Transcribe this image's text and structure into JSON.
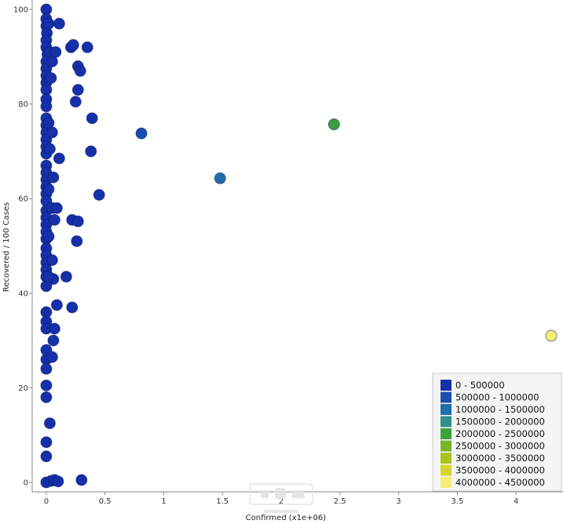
{
  "chart_data": {
    "type": "scatter",
    "title": "",
    "xlabel": "Confirmed (x1e+06)",
    "ylabel": "Recovered / 100 Cases",
    "xlim": [
      -0.12,
      4.4
    ],
    "ylim": [
      -2,
      102
    ],
    "xticks": [
      0,
      0.5,
      1,
      1.5,
      2,
      2.5,
      3,
      3.5,
      4
    ],
    "xtick_labels": [
      "0",
      "0.5",
      "1",
      "1.5",
      "2",
      "2.5",
      "3",
      "3.5",
      "4"
    ],
    "yticks": [
      0,
      20,
      40,
      60,
      80,
      100
    ],
    "ytick_labels": [
      "0",
      "20",
      "40",
      "60",
      "80",
      "100"
    ],
    "grid": false,
    "legend_position": "bottom-right",
    "color_scale": {
      "bins": [
        {
          "label": "0 - 500000",
          "color": "#1530a8"
        },
        {
          "label": "500000 - 1000000",
          "color": "#1a4fb0"
        },
        {
          "label": "1000000 - 1500000",
          "color": "#1f6fa8"
        },
        {
          "label": "1500000 - 2000000",
          "color": "#2f8f8a"
        },
        {
          "label": "2000000 - 2500000",
          "color": "#3ea03a"
        },
        {
          "label": "2500000 - 3000000",
          "color": "#7ab52a"
        },
        {
          "label": "3000000 - 3500000",
          "color": "#a9c51d"
        },
        {
          "label": "3500000 - 4000000",
          "color": "#d6d52d"
        },
        {
          "label": "4000000 - 4500000",
          "color": "#f6ee72"
        }
      ]
    },
    "points": [
      {
        "x": 0.0,
        "y": 100
      },
      {
        "x": 0.0,
        "y": 98
      },
      {
        "x": 0.0,
        "y": 96.5
      },
      {
        "x": 0.005,
        "y": 95
      },
      {
        "x": 0.0,
        "y": 93.5
      },
      {
        "x": 0.0,
        "y": 92
      },
      {
        "x": 0.01,
        "y": 90.5
      },
      {
        "x": 0.0,
        "y": 89
      },
      {
        "x": 0.0,
        "y": 87.5
      },
      {
        "x": 0.0,
        "y": 86
      },
      {
        "x": 0.0,
        "y": 84.5
      },
      {
        "x": 0.0,
        "y": 83
      },
      {
        "x": 0.0,
        "y": 81
      },
      {
        "x": 0.0,
        "y": 79.5
      },
      {
        "x": 0.0,
        "y": 77
      },
      {
        "x": 0.0,
        "y": 75.5
      },
      {
        "x": 0.0,
        "y": 74
      },
      {
        "x": 0.0,
        "y": 72.5
      },
      {
        "x": 0.0,
        "y": 71
      },
      {
        "x": 0.0,
        "y": 69.5
      },
      {
        "x": 0.0,
        "y": 67
      },
      {
        "x": 0.0,
        "y": 65.5
      },
      {
        "x": 0.0,
        "y": 64
      },
      {
        "x": 0.0,
        "y": 62.5
      },
      {
        "x": 0.0,
        "y": 61
      },
      {
        "x": 0.0,
        "y": 59.5
      },
      {
        "x": 0.0,
        "y": 57.5
      },
      {
        "x": 0.0,
        "y": 56
      },
      {
        "x": 0.0,
        "y": 54.5
      },
      {
        "x": 0.0,
        "y": 53
      },
      {
        "x": 0.0,
        "y": 51.5
      },
      {
        "x": 0.0,
        "y": 49.5
      },
      {
        "x": 0.0,
        "y": 48
      },
      {
        "x": 0.0,
        "y": 46.5
      },
      {
        "x": 0.0,
        "y": 45
      },
      {
        "x": 0.0,
        "y": 43.5
      },
      {
        "x": 0.0,
        "y": 41.5
      },
      {
        "x": 0.0,
        "y": 36
      },
      {
        "x": 0.0,
        "y": 34
      },
      {
        "x": 0.0,
        "y": 32.5
      },
      {
        "x": 0.0,
        "y": 28
      },
      {
        "x": 0.0,
        "y": 26
      },
      {
        "x": 0.0,
        "y": 24
      },
      {
        "x": 0.0,
        "y": 20.5
      },
      {
        "x": 0.0,
        "y": 18
      },
      {
        "x": 0.0,
        "y": 8.5
      },
      {
        "x": 0.0,
        "y": 5.5
      },
      {
        "x": 0.0,
        "y": 0
      },
      {
        "x": 0.02,
        "y": 97
      },
      {
        "x": 0.03,
        "y": 91
      },
      {
        "x": 0.05,
        "y": 89
      },
      {
        "x": 0.04,
        "y": 85.5
      },
      {
        "x": 0.02,
        "y": 76
      },
      {
        "x": 0.05,
        "y": 74
      },
      {
        "x": 0.03,
        "y": 70.5
      },
      {
        "x": 0.06,
        "y": 64.5
      },
      {
        "x": 0.02,
        "y": 62
      },
      {
        "x": 0.05,
        "y": 58
      },
      {
        "x": 0.07,
        "y": 55.5
      },
      {
        "x": 0.02,
        "y": 52
      },
      {
        "x": 0.05,
        "y": 47
      },
      {
        "x": 0.06,
        "y": 43
      },
      {
        "x": 0.02,
        "y": 43.5
      },
      {
        "x": 0.03,
        "y": 12.5
      },
      {
        "x": 0.05,
        "y": 26.5
      },
      {
        "x": 0.07,
        "y": 32.5
      },
      {
        "x": 0.06,
        "y": 30
      },
      {
        "x": 0.04,
        "y": 0.3
      },
      {
        "x": 0.07,
        "y": 0.5
      },
      {
        "x": 0.1,
        "y": 0.2
      },
      {
        "x": 0.08,
        "y": 91
      },
      {
        "x": 0.11,
        "y": 97
      },
      {
        "x": 0.11,
        "y": 68.5
      },
      {
        "x": 0.09,
        "y": 58
      },
      {
        "x": 0.09,
        "y": 37.5
      },
      {
        "x": 0.17,
        "y": 43.5
      },
      {
        "x": 0.21,
        "y": 92
      },
      {
        "x": 0.23,
        "y": 92.5
      },
      {
        "x": 0.27,
        "y": 88
      },
      {
        "x": 0.29,
        "y": 87
      },
      {
        "x": 0.27,
        "y": 83
      },
      {
        "x": 0.25,
        "y": 80.5
      },
      {
        "x": 0.35,
        "y": 92
      },
      {
        "x": 0.39,
        "y": 77
      },
      {
        "x": 0.38,
        "y": 70
      },
      {
        "x": 0.45,
        "y": 60.8
      },
      {
        "x": 0.22,
        "y": 55.5
      },
      {
        "x": 0.27,
        "y": 55.2
      },
      {
        "x": 0.26,
        "y": 51
      },
      {
        "x": 0.22,
        "y": 37
      },
      {
        "x": 0.3,
        "y": 0.5
      },
      {
        "x": 0.81,
        "y": 73.8
      },
      {
        "x": 1.48,
        "y": 64.3
      },
      {
        "x": 2.45,
        "y": 75.7
      },
      {
        "x": 4.3,
        "y": 31
      }
    ]
  }
}
